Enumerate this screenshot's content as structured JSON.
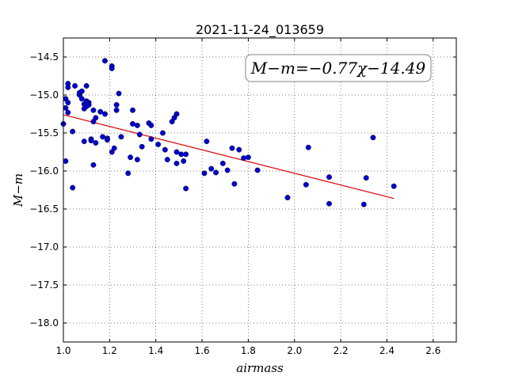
{
  "chart_data": {
    "type": "scatter",
    "title": "2021-11-24_013659",
    "xlabel": "airmass",
    "ylabel": "M−m",
    "xlim": [
      1.0,
      2.7
    ],
    "ylim": [
      -18.25,
      -14.25
    ],
    "y_inverted": true,
    "grid": true,
    "x_ticks": [
      1.0,
      1.2,
      1.4,
      1.6,
      1.8,
      2.0,
      2.2,
      2.4,
      2.6
    ],
    "x_tick_labels": [
      "1.0",
      "1.2",
      "1.4",
      "1.6",
      "1.8",
      "2.0",
      "2.2",
      "2.4",
      "2.6"
    ],
    "y_ticks": [
      -14.5,
      -15.0,
      -15.5,
      -16.0,
      -16.5,
      -17.0,
      -17.5,
      -18.0
    ],
    "y_tick_labels": [
      "−14.5",
      "−15.0",
      "−15.5",
      "−16.0",
      "−16.5",
      "−17.0",
      "−17.5",
      "−18.0"
    ],
    "annotation": "M−m=−0.77χ−14.49",
    "annotation_placement": "top-right",
    "point_color": "#0000cc",
    "fit_color": "#dd0000",
    "fit": {
      "slope": -0.77,
      "intercept": -14.49,
      "x_range": [
        1.0,
        2.43
      ]
    },
    "points": [
      {
        "x": 1.0,
        "y": -15.38
      },
      {
        "x": 1.01,
        "y": -15.17
      },
      {
        "x": 1.01,
        "y": -15.05
      },
      {
        "x": 1.02,
        "y": -14.85
      },
      {
        "x": 1.02,
        "y": -14.9
      },
      {
        "x": 1.02,
        "y": -15.1
      },
      {
        "x": 1.02,
        "y": -15.23
      },
      {
        "x": 1.01,
        "y": -15.87
      },
      {
        "x": 1.04,
        "y": -16.22
      },
      {
        "x": 1.04,
        "y": -15.48
      },
      {
        "x": 1.05,
        "y": -14.88
      },
      {
        "x": 1.07,
        "y": -15.0
      },
      {
        "x": 1.07,
        "y": -14.97
      },
      {
        "x": 1.08,
        "y": -14.95
      },
      {
        "x": 1.08,
        "y": -15.05
      },
      {
        "x": 1.09,
        "y": -15.12
      },
      {
        "x": 1.09,
        "y": -15.18
      },
      {
        "x": 1.1,
        "y": -15.08
      },
      {
        "x": 1.1,
        "y": -15.15
      },
      {
        "x": 1.1,
        "y": -14.88
      },
      {
        "x": 1.11,
        "y": -15.1
      },
      {
        "x": 1.11,
        "y": -15.13
      },
      {
        "x": 1.09,
        "y": -15.61
      },
      {
        "x": 1.12,
        "y": -15.58
      },
      {
        "x": 1.12,
        "y": -15.6
      },
      {
        "x": 1.13,
        "y": -15.2
      },
      {
        "x": 1.13,
        "y": -15.35
      },
      {
        "x": 1.13,
        "y": -15.92
      },
      {
        "x": 1.14,
        "y": -15.3
      },
      {
        "x": 1.14,
        "y": -15.63
      },
      {
        "x": 1.16,
        "y": -15.22
      },
      {
        "x": 1.17,
        "y": -15.55
      },
      {
        "x": 1.18,
        "y": -15.25
      },
      {
        "x": 1.18,
        "y": -14.55
      },
      {
        "x": 1.19,
        "y": -15.57
      },
      {
        "x": 1.19,
        "y": -15.59
      },
      {
        "x": 1.21,
        "y": -14.62
      },
      {
        "x": 1.21,
        "y": -14.65
      },
      {
        "x": 1.21,
        "y": -15.75
      },
      {
        "x": 1.22,
        "y": -15.7
      },
      {
        "x": 1.23,
        "y": -15.13
      },
      {
        "x": 1.23,
        "y": -15.2
      },
      {
        "x": 1.24,
        "y": -14.98
      },
      {
        "x": 1.25,
        "y": -15.55
      },
      {
        "x": 1.28,
        "y": -16.03
      },
      {
        "x": 1.29,
        "y": -15.82
      },
      {
        "x": 1.3,
        "y": -15.2
      },
      {
        "x": 1.3,
        "y": -15.38
      },
      {
        "x": 1.32,
        "y": -15.4
      },
      {
        "x": 1.32,
        "y": -15.85
      },
      {
        "x": 1.33,
        "y": -15.52
      },
      {
        "x": 1.34,
        "y": -15.68
      },
      {
        "x": 1.37,
        "y": -15.37
      },
      {
        "x": 1.38,
        "y": -15.4
      },
      {
        "x": 1.38,
        "y": -15.58
      },
      {
        "x": 1.41,
        "y": -15.65
      },
      {
        "x": 1.43,
        "y": -15.5
      },
      {
        "x": 1.44,
        "y": -15.72
      },
      {
        "x": 1.45,
        "y": -15.85
      },
      {
        "x": 1.47,
        "y": -15.35
      },
      {
        "x": 1.48,
        "y": -15.3
      },
      {
        "x": 1.49,
        "y": -15.25
      },
      {
        "x": 1.49,
        "y": -15.75
      },
      {
        "x": 1.49,
        "y": -15.9
      },
      {
        "x": 1.51,
        "y": -15.78
      },
      {
        "x": 1.52,
        "y": -15.87
      },
      {
        "x": 1.53,
        "y": -15.78
      },
      {
        "x": 1.53,
        "y": -16.23
      },
      {
        "x": 1.61,
        "y": -16.03
      },
      {
        "x": 1.62,
        "y": -15.61
      },
      {
        "x": 1.64,
        "y": -15.97
      },
      {
        "x": 1.66,
        "y": -16.02
      },
      {
        "x": 1.69,
        "y": -15.9
      },
      {
        "x": 1.71,
        "y": -15.99
      },
      {
        "x": 1.73,
        "y": -15.7
      },
      {
        "x": 1.74,
        "y": -16.17
      },
      {
        "x": 1.76,
        "y": -15.72
      },
      {
        "x": 1.78,
        "y": -15.83
      },
      {
        "x": 1.8,
        "y": -15.82
      },
      {
        "x": 1.84,
        "y": -15.99
      },
      {
        "x": 1.97,
        "y": -16.35
      },
      {
        "x": 2.05,
        "y": -16.18
      },
      {
        "x": 2.06,
        "y": -15.69
      },
      {
        "x": 2.15,
        "y": -16.08
      },
      {
        "x": 2.15,
        "y": -16.43
      },
      {
        "x": 2.3,
        "y": -16.44
      },
      {
        "x": 2.31,
        "y": -16.09
      },
      {
        "x": 2.34,
        "y": -15.56
      },
      {
        "x": 2.43,
        "y": -16.2
      }
    ]
  }
}
